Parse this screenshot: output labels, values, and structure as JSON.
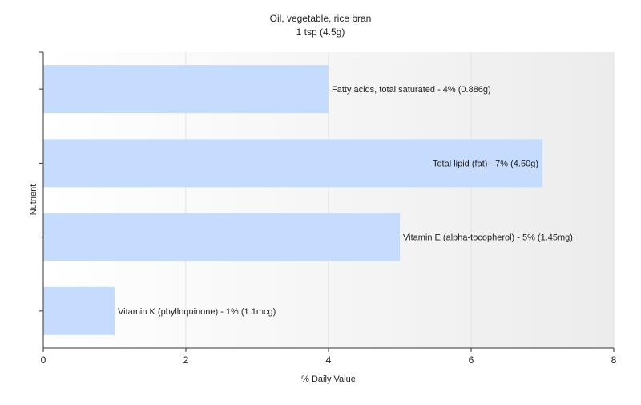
{
  "chart_data": {
    "type": "bar",
    "orientation": "horizontal",
    "title": "Oil, vegetable, rice bran",
    "subtitle": "1 tsp (4.5g)",
    "xlabel": "% Daily Value",
    "ylabel": "Nutrient",
    "xlim": [
      0,
      8
    ],
    "xticks": [
      "0",
      "2",
      "4",
      "6",
      "8"
    ],
    "grid": true,
    "legend": "none",
    "bar_color": "#c6dcff",
    "categories": [
      "Fatty acids, total saturated",
      "Total lipid (fat)",
      "Vitamin E (alpha-tocopherol)",
      "Vitamin K (phylloquinone)"
    ],
    "values": [
      4,
      7,
      5,
      1
    ],
    "labels": [
      "Fatty acids, total saturated - 4% (0.886g)",
      "Total lipid (fat) - 7% (4.50g)",
      "Vitamin E (alpha-tocopherol) - 5% (1.45mg)",
      "Vitamin K (phylloquinone) - 1% (1.1mcg)"
    ]
  }
}
